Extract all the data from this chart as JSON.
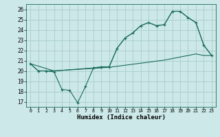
{
  "xlabel": "Humidex (Indice chaleur)",
  "background_color": "#cce8e8",
  "grid_color": "#aacccc",
  "line_color": "#1a6b5a",
  "xlim": [
    -0.5,
    23.5
  ],
  "ylim": [
    16.5,
    26.5
  ],
  "yticks": [
    17,
    18,
    19,
    20,
    21,
    22,
    23,
    24,
    25,
    26
  ],
  "xticks": [
    0,
    1,
    2,
    3,
    4,
    5,
    6,
    7,
    8,
    9,
    10,
    11,
    12,
    13,
    14,
    15,
    16,
    17,
    18,
    19,
    20,
    21,
    22,
    23
  ],
  "series1_x": [
    0,
    1,
    2,
    3,
    4,
    5,
    6,
    7,
    8,
    9,
    10,
    11,
    12,
    13,
    14,
    15,
    16,
    17,
    18,
    19,
    20,
    21,
    22,
    23
  ],
  "series1_y": [
    20.7,
    20.0,
    20.0,
    19.9,
    18.2,
    18.1,
    16.9,
    18.5,
    20.3,
    20.4,
    20.4,
    22.2,
    23.2,
    23.7,
    24.4,
    24.7,
    24.4,
    24.5,
    25.8,
    25.8,
    25.2,
    24.7,
    22.5,
    21.5
  ],
  "series2_x": [
    0,
    1,
    2,
    3,
    4,
    5,
    6,
    7,
    8,
    9,
    10,
    11,
    12,
    13,
    14,
    15,
    16,
    17,
    18,
    19,
    20,
    21,
    22,
    23
  ],
  "series2_y": [
    20.7,
    20.0,
    20.0,
    20.0,
    20.05,
    20.1,
    20.15,
    20.2,
    20.25,
    20.3,
    20.35,
    20.45,
    20.55,
    20.65,
    20.75,
    20.85,
    20.95,
    21.05,
    21.2,
    21.35,
    21.5,
    21.65,
    21.5,
    21.5
  ],
  "series3_x": [
    0,
    3,
    10,
    11,
    12,
    13,
    14,
    15,
    16,
    17,
    18,
    19,
    20,
    21,
    22,
    23
  ],
  "series3_y": [
    20.7,
    20.0,
    20.4,
    22.2,
    23.2,
    23.7,
    24.4,
    24.7,
    24.4,
    24.5,
    25.8,
    25.8,
    25.2,
    24.7,
    22.5,
    21.5
  ]
}
